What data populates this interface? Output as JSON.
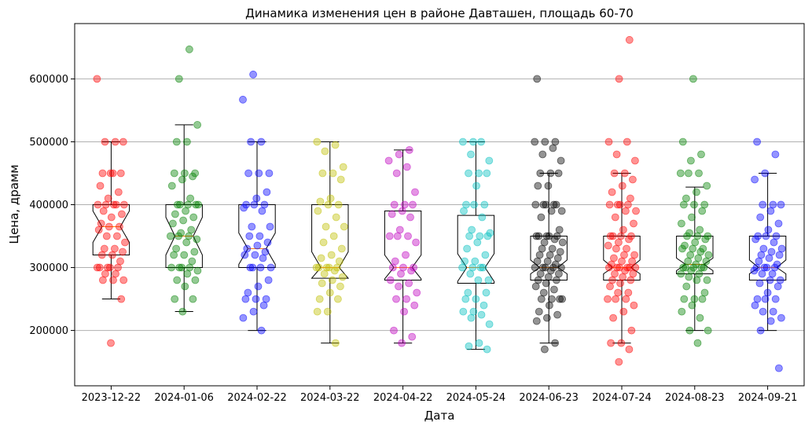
{
  "chart_data": {
    "type": "box",
    "title": "Динамика изменения цен в районе Давташен, площадь 60-70",
    "xlabel": "Дата",
    "ylabel": "Цена, драмм",
    "ylim": [
      112000,
      688000
    ],
    "yticks": [
      200000,
      300000,
      400000,
      500000,
      600000
    ],
    "grid": "horizontal",
    "categories": [
      "2023-12-22",
      "2024-01-06",
      "2024-02-22",
      "2024-03-22",
      "2024-04-22",
      "2024-05-24",
      "2024-06-23",
      "2024-07-24",
      "2024-08-23",
      "2024-09-21"
    ],
    "colors": [
      "#ff0000",
      "#008000",
      "#0000ff",
      "#bfbf00",
      "#bf00bf",
      "#00bfbf",
      "#000000",
      "#ff0000",
      "#008000",
      "#0000ff"
    ],
    "boxes": [
      {
        "q1": 320000,
        "median": 365000,
        "q3": 400000,
        "whisker_low": 250000,
        "whisker_high": 500000,
        "notch_low": 340000,
        "notch_high": 390000
      },
      {
        "q1": 300000,
        "median": 350000,
        "q3": 400000,
        "whisker_low": 230000,
        "whisker_high": 527000,
        "notch_low": 320000,
        "notch_high": 380000
      },
      {
        "q1": 300000,
        "median": 330000,
        "q3": 400000,
        "whisker_low": 200000,
        "whisker_high": 500000,
        "notch_low": 305000,
        "notch_high": 355000
      },
      {
        "q1": 283000,
        "median": 300000,
        "q3": 400000,
        "whisker_low": 180000,
        "whisker_high": 500000,
        "notch_low": 283000,
        "notch_high": 325000
      },
      {
        "q1": 280000,
        "median": 300000,
        "q3": 390000,
        "whisker_low": 180000,
        "whisker_high": 487000,
        "notch_low": 282000,
        "notch_high": 320000
      },
      {
        "q1": 275000,
        "median": 300000,
        "q3": 383000,
        "whisker_low": 170000,
        "whisker_high": 500000,
        "notch_low": 278000,
        "notch_high": 322000
      },
      {
        "q1": 280000,
        "median": 300000,
        "q3": 350000,
        "whisker_low": 180000,
        "whisker_high": 450000,
        "notch_low": 290000,
        "notch_high": 312000
      },
      {
        "q1": 280000,
        "median": 300000,
        "q3": 350000,
        "whisker_low": 180000,
        "whisker_high": 450000,
        "notch_low": 290000,
        "notch_high": 312000
      },
      {
        "q1": 290000,
        "median": 305000,
        "q3": 350000,
        "whisker_low": 200000,
        "whisker_high": 428000,
        "notch_low": 295000,
        "notch_high": 315000
      },
      {
        "q1": 280000,
        "median": 300000,
        "q3": 350000,
        "whisker_low": 200000,
        "whisker_high": 450000,
        "notch_low": 290000,
        "notch_high": 312000
      }
    ],
    "points": [
      [
        600000,
        500000,
        500000,
        500000,
        450000,
        450000,
        450000,
        450000,
        430000,
        420000,
        410000,
        400000,
        400000,
        400000,
        400000,
        400000,
        390000,
        385000,
        380000,
        370000,
        365000,
        365000,
        360000,
        350000,
        350000,
        340000,
        330000,
        330000,
        325000,
        320000,
        320000,
        310000,
        300000,
        300000,
        300000,
        300000,
        300000,
        290000,
        290000,
        280000,
        280000,
        280000,
        250000,
        180000
      ],
      [
        647000,
        600000,
        527000,
        500000,
        500000,
        450000,
        450000,
        450000,
        445000,
        440000,
        430000,
        410000,
        400000,
        400000,
        400000,
        400000,
        400000,
        390000,
        385000,
        380000,
        375000,
        370000,
        360000,
        355000,
        350000,
        350000,
        350000,
        345000,
        340000,
        330000,
        325000,
        320000,
        320000,
        310000,
        300000,
        300000,
        300000,
        300000,
        295000,
        290000,
        280000,
        280000,
        270000,
        250000,
        250000,
        230000
      ],
      [
        607000,
        567000,
        500000,
        500000,
        450000,
        450000,
        450000,
        420000,
        410000,
        400000,
        400000,
        400000,
        395000,
        390000,
        365000,
        365000,
        350000,
        350000,
        340000,
        335000,
        330000,
        325000,
        320000,
        320000,
        315000,
        300000,
        300000,
        300000,
        300000,
        280000,
        270000,
        260000,
        250000,
        250000,
        250000,
        240000,
        230000,
        220000,
        200000
      ],
      [
        500000,
        495000,
        485000,
        460000,
        450000,
        450000,
        440000,
        410000,
        405000,
        400000,
        400000,
        390000,
        380000,
        365000,
        365000,
        350000,
        340000,
        330000,
        320000,
        315000,
        310000,
        300000,
        300000,
        300000,
        300000,
        300000,
        295000,
        290000,
        285000,
        280000,
        275000,
        270000,
        260000,
        250000,
        250000,
        230000,
        230000,
        180000
      ],
      [
        487000,
        480000,
        470000,
        460000,
        450000,
        420000,
        400000,
        400000,
        400000,
        390000,
        385000,
        380000,
        360000,
        350000,
        350000,
        350000,
        340000,
        320000,
        310000,
        300000,
        300000,
        300000,
        295000,
        290000,
        280000,
        275000,
        270000,
        260000,
        250000,
        250000,
        240000,
        230000,
        200000,
        190000,
        180000
      ],
      [
        500000,
        500000,
        500000,
        480000,
        470000,
        450000,
        450000,
        450000,
        430000,
        400000,
        400000,
        400000,
        390000,
        380000,
        360000,
        355000,
        350000,
        350000,
        350000,
        340000,
        330000,
        320000,
        310000,
        310000,
        300000,
        300000,
        300000,
        300000,
        290000,
        280000,
        280000,
        260000,
        260000,
        250000,
        250000,
        240000,
        230000,
        230000,
        225000,
        220000,
        210000,
        180000,
        175000,
        170000
      ],
      [
        600000,
        500000,
        500000,
        500000,
        490000,
        480000,
        470000,
        450000,
        450000,
        450000,
        430000,
        430000,
        400000,
        400000,
        400000,
        400000,
        400000,
        390000,
        390000,
        380000,
        360000,
        350000,
        350000,
        350000,
        350000,
        350000,
        345000,
        340000,
        340000,
        330000,
        330000,
        325000,
        320000,
        320000,
        315000,
        310000,
        310000,
        305000,
        300000,
        300000,
        300000,
        300000,
        300000,
        295000,
        290000,
        290000,
        285000,
        280000,
        280000,
        275000,
        270000,
        265000,
        260000,
        250000,
        250000,
        250000,
        250000,
        240000,
        230000,
        225000,
        220000,
        215000,
        180000,
        170000
      ],
      [
        662000,
        600000,
        500000,
        500000,
        480000,
        470000,
        450000,
        450000,
        440000,
        430000,
        420000,
        410000,
        400000,
        400000,
        400000,
        400000,
        390000,
        390000,
        380000,
        370000,
        360000,
        350000,
        350000,
        350000,
        350000,
        345000,
        340000,
        335000,
        330000,
        330000,
        320000,
        320000,
        315000,
        310000,
        310000,
        305000,
        300000,
        300000,
        300000,
        300000,
        300000,
        300000,
        295000,
        290000,
        290000,
        285000,
        280000,
        280000,
        275000,
        270000,
        260000,
        260000,
        250000,
        250000,
        250000,
        240000,
        230000,
        220000,
        200000,
        180000,
        180000,
        170000,
        150000
      ],
      [
        600000,
        500000,
        480000,
        470000,
        450000,
        450000,
        450000,
        430000,
        420000,
        410000,
        400000,
        400000,
        400000,
        390000,
        380000,
        370000,
        360000,
        355000,
        350000,
        350000,
        350000,
        345000,
        340000,
        335000,
        330000,
        330000,
        330000,
        325000,
        320000,
        320000,
        315000,
        310000,
        310000,
        305000,
        300000,
        300000,
        300000,
        300000,
        300000,
        295000,
        290000,
        290000,
        285000,
        280000,
        280000,
        270000,
        260000,
        250000,
        250000,
        250000,
        240000,
        230000,
        220000,
        200000,
        200000,
        180000
      ],
      [
        500000,
        480000,
        450000,
        440000,
        400000,
        400000,
        400000,
        390000,
        380000,
        370000,
        360000,
        350000,
        350000,
        350000,
        345000,
        340000,
        330000,
        330000,
        325000,
        320000,
        320000,
        315000,
        310000,
        305000,
        300000,
        300000,
        300000,
        300000,
        295000,
        290000,
        290000,
        280000,
        280000,
        275000,
        270000,
        260000,
        250000,
        250000,
        250000,
        240000,
        230000,
        230000,
        220000,
        215000,
        200000,
        140000
      ]
    ]
  }
}
